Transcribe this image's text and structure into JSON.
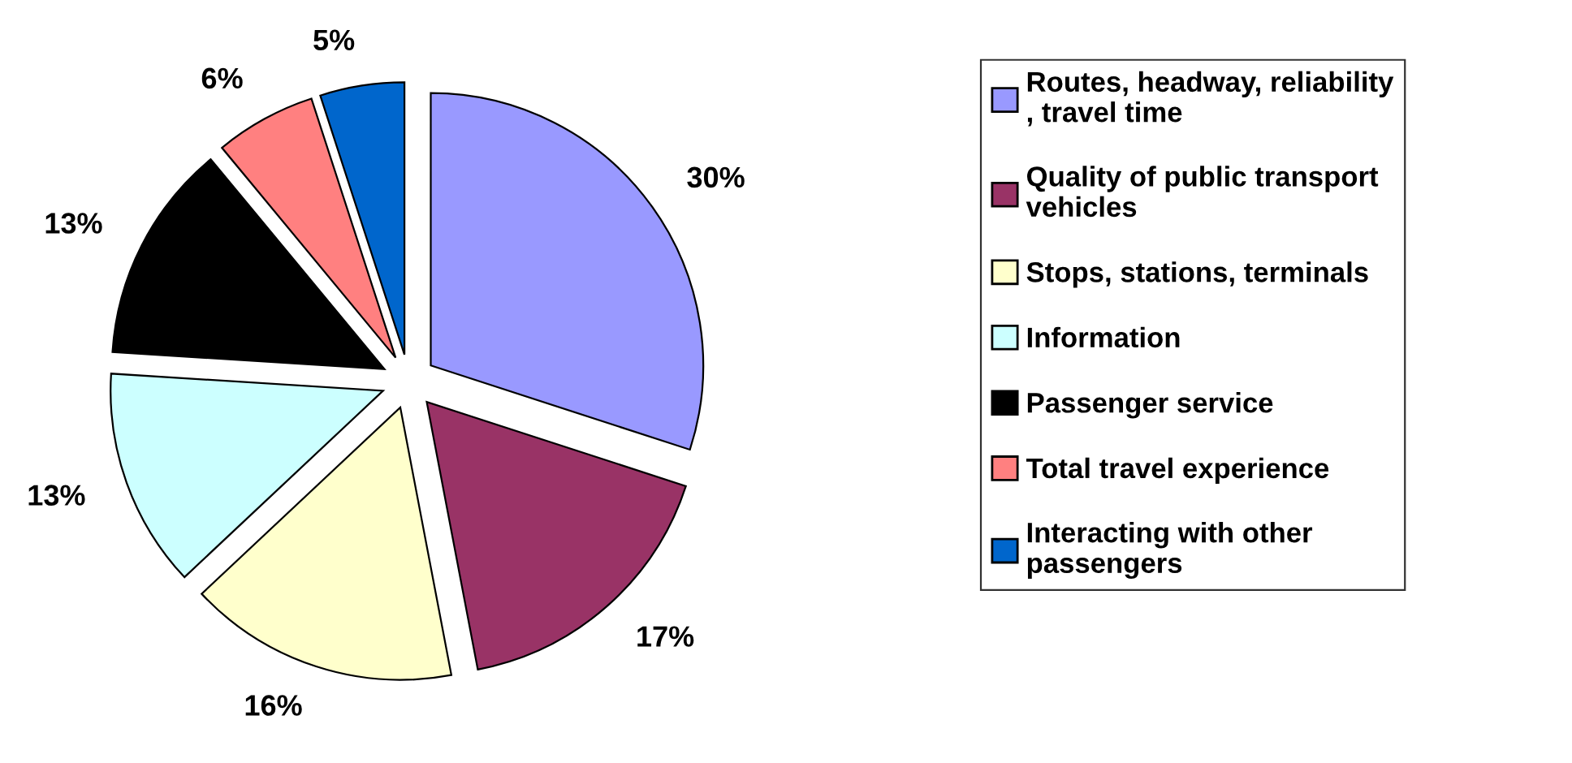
{
  "chart_data": {
    "type": "pie",
    "categories": [
      "Routes, headway, reliability\n, travel time",
      "Quality of public transport\nvehicles",
      "Stops, stations, terminals",
      "Information",
      "Passenger service",
      "Total travel experience",
      "Interacting with other\npassengers"
    ],
    "values": [
      30,
      17,
      16,
      13,
      13,
      6,
      5
    ],
    "colors": [
      "#9999ff",
      "#993366",
      "#ffffcc",
      "#ccffff",
      "#000000",
      "#ff8080",
      "#0066cc"
    ],
    "value_labels": [
      "30%",
      "17%",
      "16%",
      "13%",
      "13%",
      "6%",
      "5%"
    ],
    "legend": "right"
  }
}
